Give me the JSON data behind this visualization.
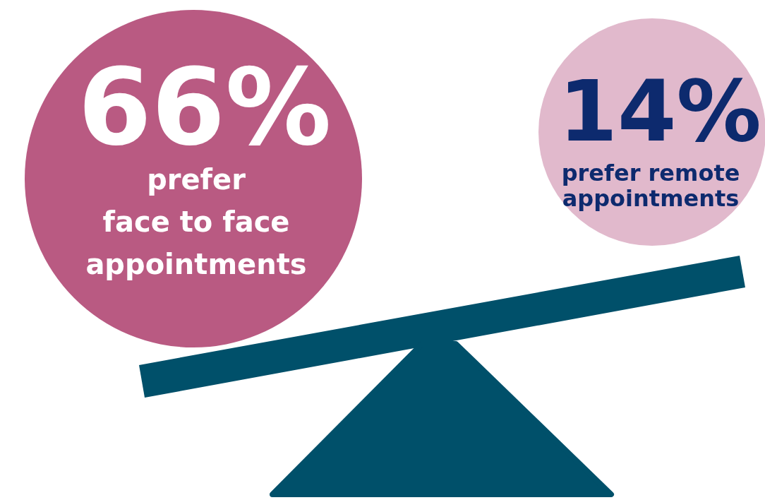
{
  "chart_data": {
    "type": "other",
    "categories": [
      "prefer\nface to face\nappointments",
      "prefer remote\nappointments"
    ],
    "values": [
      66,
      14
    ],
    "value_labels": [
      "66%",
      "14%"
    ],
    "colors": [
      "#b95a82",
      "#e1b9cc"
    ]
  }
}
